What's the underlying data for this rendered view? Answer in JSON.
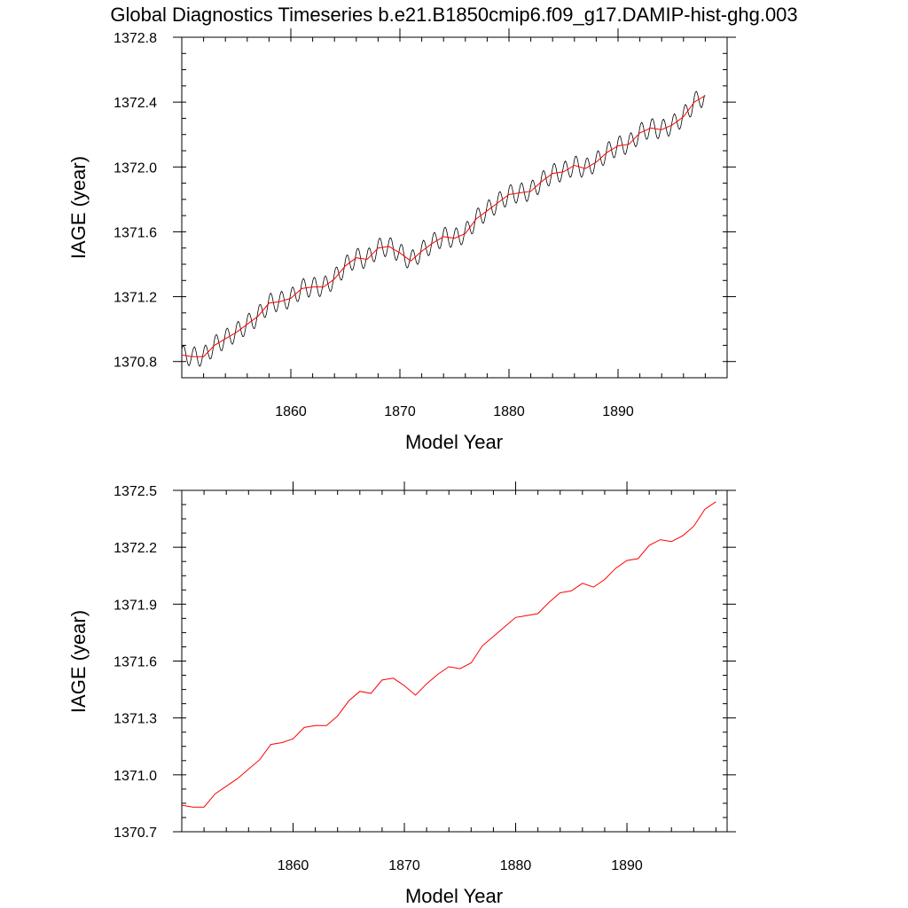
{
  "title": "Global Diagnostics Timeseries b.e21.B1850cmip6.f09_g17.DAMIP-hist-ghg.003",
  "colors": {
    "monthly": "#000000",
    "annual": "#ff0000",
    "frame": "#000000"
  },
  "chart_data": [
    {
      "type": "line",
      "xlabel": "Model Year",
      "ylabel": "IAGE (year)",
      "xlim": [
        1850,
        1900
      ],
      "ylim": [
        1370.7,
        1372.8
      ],
      "xticks": [
        1860,
        1870,
        1880,
        1890
      ],
      "xtick_labels": [
        "1860",
        "1870",
        "1880",
        "1890"
      ],
      "yticks": [
        1370.8,
        1371.2,
        1371.6,
        1372.0,
        1372.4,
        1372.8
      ],
      "ytick_labels": [
        "1370.8",
        "1371.2",
        "1371.6",
        "1372.0",
        "1372.4",
        "1372.8"
      ],
      "series": [
        {
          "kind": "monthly",
          "color": "#000000",
          "seasonal_amplitude": 0.06,
          "x": [
            1850,
            1851,
            1852,
            1853,
            1854,
            1855,
            1856,
            1857,
            1858,
            1859,
            1860,
            1861,
            1862,
            1863,
            1864,
            1865,
            1866,
            1867,
            1868,
            1869,
            1870,
            1871,
            1872,
            1873,
            1874,
            1875,
            1876,
            1877,
            1878,
            1879,
            1880,
            1881,
            1882,
            1883,
            1884,
            1885,
            1886,
            1887,
            1888,
            1889,
            1890,
            1891,
            1892,
            1893,
            1894,
            1895,
            1896,
            1897,
            1898
          ],
          "values": [
            1370.84,
            1370.83,
            1370.83,
            1370.9,
            1370.94,
            1370.98,
            1371.03,
            1371.08,
            1371.16,
            1371.17,
            1371.19,
            1371.25,
            1371.26,
            1371.26,
            1371.31,
            1371.39,
            1371.44,
            1371.43,
            1371.5,
            1371.51,
            1371.47,
            1371.42,
            1371.48,
            1371.53,
            1371.57,
            1371.56,
            1371.59,
            1371.68,
            1371.73,
            1371.78,
            1371.83,
            1371.84,
            1371.85,
            1371.91,
            1371.96,
            1371.97,
            1372.01,
            1371.99,
            1372.03,
            1372.09,
            1372.13,
            1372.14,
            1372.21,
            1372.24,
            1372.23,
            1372.26,
            1372.31,
            1372.4,
            1372.44
          ]
        },
        {
          "kind": "annual",
          "color": "#ff0000",
          "x": [
            1850,
            1851,
            1852,
            1853,
            1854,
            1855,
            1856,
            1857,
            1858,
            1859,
            1860,
            1861,
            1862,
            1863,
            1864,
            1865,
            1866,
            1867,
            1868,
            1869,
            1870,
            1871,
            1872,
            1873,
            1874,
            1875,
            1876,
            1877,
            1878,
            1879,
            1880,
            1881,
            1882,
            1883,
            1884,
            1885,
            1886,
            1887,
            1888,
            1889,
            1890,
            1891,
            1892,
            1893,
            1894,
            1895,
            1896,
            1897,
            1898
          ],
          "values": [
            1370.84,
            1370.83,
            1370.83,
            1370.9,
            1370.94,
            1370.98,
            1371.03,
            1371.08,
            1371.16,
            1371.17,
            1371.19,
            1371.25,
            1371.26,
            1371.26,
            1371.31,
            1371.39,
            1371.44,
            1371.43,
            1371.5,
            1371.51,
            1371.47,
            1371.42,
            1371.48,
            1371.53,
            1371.57,
            1371.56,
            1371.59,
            1371.68,
            1371.73,
            1371.78,
            1371.83,
            1371.84,
            1371.85,
            1371.91,
            1371.96,
            1371.97,
            1372.01,
            1371.99,
            1372.03,
            1372.09,
            1372.13,
            1372.14,
            1372.21,
            1372.24,
            1372.23,
            1372.26,
            1372.31,
            1372.4,
            1372.44
          ]
        }
      ]
    },
    {
      "type": "line",
      "xlabel": "Model Year",
      "ylabel": "IAGE (year)",
      "xlim": [
        1850,
        1899
      ],
      "ylim": [
        1370.7,
        1372.5
      ],
      "xticks": [
        1860,
        1870,
        1880,
        1890
      ],
      "xtick_labels": [
        "1860",
        "1870",
        "1880",
        "1890"
      ],
      "yticks": [
        1370.7,
        1371.0,
        1371.3,
        1371.6,
        1371.9,
        1372.2,
        1372.5
      ],
      "ytick_labels": [
        "1370.7",
        "1371.0",
        "1371.3",
        "1371.6",
        "1371.9",
        "1372.2",
        "1372.5"
      ],
      "series": [
        {
          "kind": "annual",
          "color": "#ff0000",
          "x": [
            1850,
            1851,
            1852,
            1853,
            1854,
            1855,
            1856,
            1857,
            1858,
            1859,
            1860,
            1861,
            1862,
            1863,
            1864,
            1865,
            1866,
            1867,
            1868,
            1869,
            1870,
            1871,
            1872,
            1873,
            1874,
            1875,
            1876,
            1877,
            1878,
            1879,
            1880,
            1881,
            1882,
            1883,
            1884,
            1885,
            1886,
            1887,
            1888,
            1889,
            1890,
            1891,
            1892,
            1893,
            1894,
            1895,
            1896,
            1897,
            1898
          ],
          "values": [
            1370.84,
            1370.83,
            1370.83,
            1370.9,
            1370.94,
            1370.98,
            1371.03,
            1371.08,
            1371.16,
            1371.17,
            1371.19,
            1371.25,
            1371.26,
            1371.26,
            1371.31,
            1371.39,
            1371.44,
            1371.43,
            1371.5,
            1371.51,
            1371.47,
            1371.42,
            1371.48,
            1371.53,
            1371.57,
            1371.56,
            1371.59,
            1371.68,
            1371.73,
            1371.78,
            1371.83,
            1371.84,
            1371.85,
            1371.91,
            1371.96,
            1371.97,
            1372.01,
            1371.99,
            1372.03,
            1372.09,
            1372.13,
            1372.14,
            1372.21,
            1372.24,
            1372.23,
            1372.26,
            1372.31,
            1372.4,
            1372.44
          ]
        }
      ]
    }
  ]
}
